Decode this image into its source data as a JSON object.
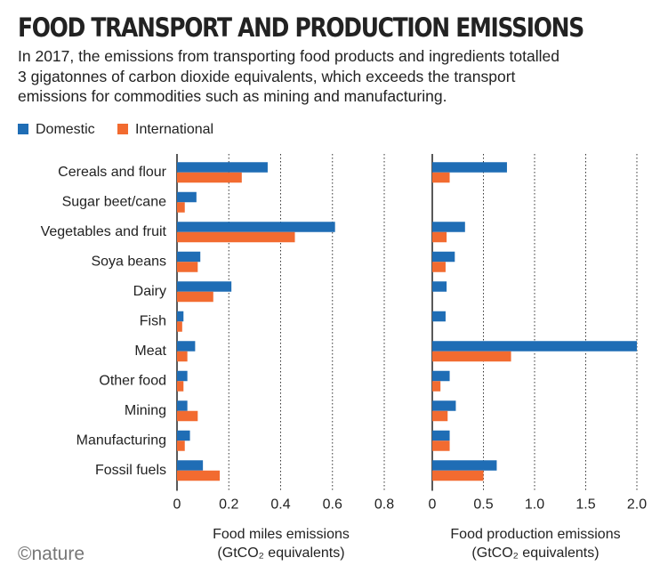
{
  "chart_data": [
    {
      "type": "hbar",
      "title": "FOOD TRANSPORT AND PRODUCTION EMISSIONS",
      "subtitle": "In 2017, the emissions from transporting food products and ingredients totalled 3 gigatonnes of carbon dioxide equivalents, which exceeds the transport emissions for commodities such as mining and manufacturing.",
      "source": "©nature",
      "xlabel": "Food miles emissions\n(GtCO₂ equivalents)",
      "categories": [
        "Cereals and flour",
        "Sugar beet/cane",
        "Vegetables and fruit",
        "Soya beans",
        "Dairy",
        "Fish",
        "Meat",
        "Other food",
        "Mining",
        "Manufacturing",
        "Fossil fuels"
      ],
      "series": [
        {
          "name": "Domestic",
          "color": "#1f6db5",
          "values": [
            0.35,
            0.075,
            0.61,
            0.09,
            0.21,
            0.025,
            0.07,
            0.04,
            0.04,
            0.05,
            0.1
          ]
        },
        {
          "name": "International",
          "color": "#f26b30",
          "values": [
            0.25,
            0.03,
            0.455,
            0.08,
            0.14,
            0.02,
            0.04,
            0.025,
            0.08,
            0.03,
            0.165
          ]
        }
      ],
      "xlim": [
        0,
        0.8
      ],
      "xticks": [
        0,
        0.2,
        0.4,
        0.6,
        0.8
      ],
      "grid": true
    },
    {
      "type": "hbar",
      "xlabel": "Food production emissions\n(GtCO₂ equivalents)",
      "series": [
        {
          "color": "#1f6db5",
          "values": [
            0.73,
            null,
            0.32,
            0.22,
            0.14,
            0.13,
            2.0,
            0.17,
            0.23,
            0.17,
            0.63
          ]
        },
        {
          "color": "#f26b30",
          "values": [
            0.17,
            null,
            0.14,
            0.13,
            null,
            null,
            0.77,
            0.08,
            0.15,
            0.17,
            0.5
          ]
        }
      ],
      "xlim": [
        0,
        2.0
      ],
      "xticks": [
        0,
        0.5,
        {
          "value": 1.0,
          "label": "1.0"
        },
        1.5,
        {
          "value": 2.0,
          "label": "2.0"
        }
      ],
      "grid": true
    }
  ]
}
